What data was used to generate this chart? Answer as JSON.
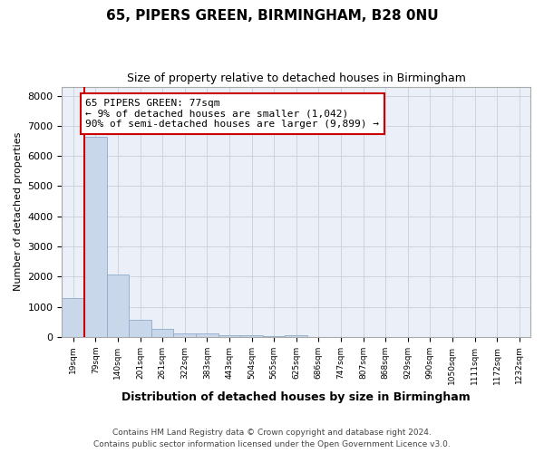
{
  "title": "65, PIPERS GREEN, BIRMINGHAM, B28 0NU",
  "subtitle": "Size of property relative to detached houses in Birmingham",
  "xlabel": "Distribution of detached houses by size in Birmingham",
  "ylabel": "Number of detached properties",
  "bar_color": "#c8d8ea",
  "bar_edge_color": "#90aac8",
  "categories": [
    "19sqm",
    "79sqm",
    "140sqm",
    "201sqm",
    "261sqm",
    "322sqm",
    "383sqm",
    "443sqm",
    "504sqm",
    "565sqm",
    "625sqm",
    "686sqm",
    "747sqm",
    "807sqm",
    "868sqm",
    "929sqm",
    "990sqm",
    "1050sqm",
    "1111sqm",
    "1172sqm",
    "1232sqm"
  ],
  "values": [
    1300,
    6620,
    2060,
    580,
    260,
    100,
    100,
    50,
    50,
    10,
    50,
    0,
    0,
    0,
    0,
    0,
    0,
    0,
    0,
    0,
    0
  ],
  "ylim": [
    0,
    8300
  ],
  "yticks": [
    0,
    1000,
    2000,
    3000,
    4000,
    5000,
    6000,
    7000,
    8000
  ],
  "property_line_x": 0.5,
  "annotation_text": "65 PIPERS GREEN: 77sqm\n← 9% of detached houses are smaller (1,042)\n90% of semi-detached houses are larger (9,899) →",
  "footer_line1": "Contains HM Land Registry data © Crown copyright and database right 2024.",
  "footer_line2": "Contains public sector information licensed under the Open Government Licence v3.0.",
  "grid_color": "#ccd4e0",
  "annotation_box_color": "#cc0000",
  "property_line_color": "#cc0000",
  "background_color": "#eaeff8"
}
